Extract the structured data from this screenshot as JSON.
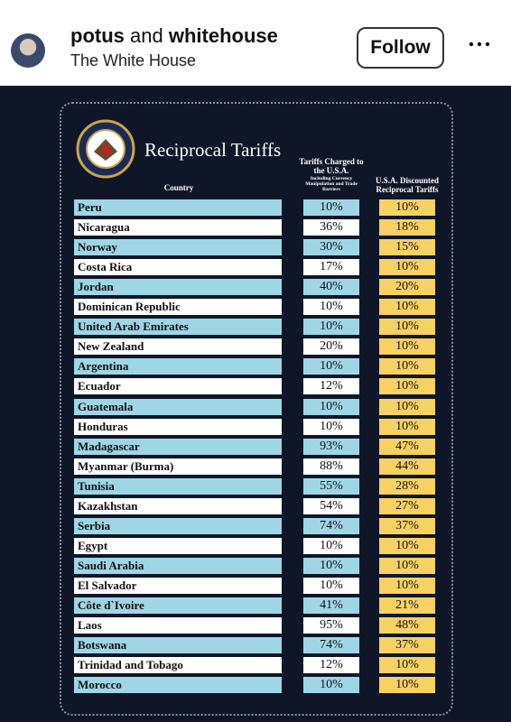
{
  "header": {
    "user_a": "potus",
    "joiner": "and",
    "user_b": "whitehouse",
    "subtitle": "The White House",
    "follow": "Follow"
  },
  "table": {
    "title": "Reciprocal Tariffs",
    "columns": {
      "country": "Country",
      "charged": "Tariffs Charged to the U.S.A.",
      "charged_note": "Including Currency Manipulation and Trade Barriers",
      "reciprocal": "U.S.A. Discounted Reciprocal Tariffs"
    },
    "rows": [
      [
        "Peru",
        "10%",
        "10%"
      ],
      [
        "Nicaragua",
        "36%",
        "18%"
      ],
      [
        "Norway",
        "30%",
        "15%"
      ],
      [
        "Costa Rica",
        "17%",
        "10%"
      ],
      [
        "Jordan",
        "40%",
        "20%"
      ],
      [
        "Dominican Republic",
        "10%",
        "10%"
      ],
      [
        "United Arab Emirates",
        "10%",
        "10%"
      ],
      [
        "New Zealand",
        "20%",
        "10%"
      ],
      [
        "Argentina",
        "10%",
        "10%"
      ],
      [
        "Ecuador",
        "12%",
        "10%"
      ],
      [
        "Guatemala",
        "10%",
        "10%"
      ],
      [
        "Honduras",
        "10%",
        "10%"
      ],
      [
        "Madagascar",
        "93%",
        "47%"
      ],
      [
        "Myanmar (Burma)",
        "88%",
        "44%"
      ],
      [
        "Tunisia",
        "55%",
        "28%"
      ],
      [
        "Kazakhstan",
        "54%",
        "27%"
      ],
      [
        "Serbia",
        "74%",
        "37%"
      ],
      [
        "Egypt",
        "10%",
        "10%"
      ],
      [
        "Saudi Arabia",
        "10%",
        "10%"
      ],
      [
        "El Salvador",
        "10%",
        "10%"
      ],
      [
        "Côte d`Ivoire",
        "41%",
        "21%"
      ],
      [
        "Laos",
        "95%",
        "48%"
      ],
      [
        "Botswana",
        "74%",
        "37%"
      ],
      [
        "Trinidad and Tobago",
        "12%",
        "10%"
      ],
      [
        "Morocco",
        "10%",
        "10%"
      ]
    ]
  }
}
